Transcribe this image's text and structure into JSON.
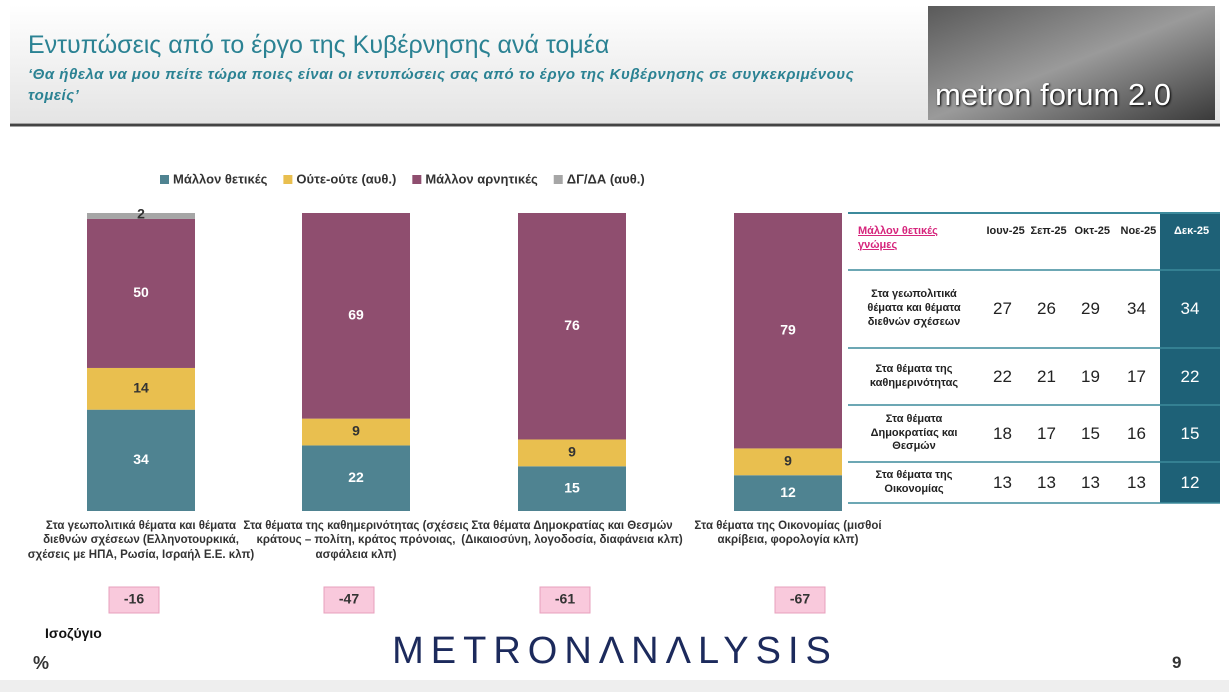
{
  "header": {
    "title": "Εντυπώσεις από το έργο της Κυβέρνησης ανά τομέα",
    "subtitle": "‘Θα ήθελα να μου πείτε τώρα ποιες είναι οι εντυπώσεις σας από το έργο της Κυβέρνησης σε συγκεκριμένους τομείς’",
    "logo": "metron forum 2.0"
  },
  "chart_data": {
    "type": "stacked_bar",
    "categories": [
      "Στα γεωπολιτικά θέματα και θέματα διεθνών σχέσεων (Ελληνοτουρκικά, σχέσεις με ΗΠΑ, Ρωσία, Ισραήλ Ε.Ε. κλπ)",
      "Στα θέματα της καθημερινότητας (σχέσεις κράτους – πολίτη, κράτος πρόνοιας, ασφάλεια κλπ)",
      "Στα θέματα Δημοκρατίας και Θεσμών (Δικαιοσύνη, λογοδοσία, διαφάνεια κλπ)",
      "Στα θέματα της Οικονομίας (μισθοί ακρίβεια, φορολογία κλπ)"
    ],
    "series": [
      {
        "name": "Μάλλον θετικές",
        "color": "#4f8391",
        "values": [
          34,
          22,
          15,
          12
        ]
      },
      {
        "name": "Ούτε-ούτε  (αυθ.)",
        "color": "#e9bf4f",
        "values": [
          14,
          9,
          9,
          9
        ]
      },
      {
        "name": "Μάλλον αρνητικές",
        "color": "#8f4e6f",
        "values": [
          50,
          69,
          76,
          79
        ]
      },
      {
        "name": "ΔΓ/ΔΑ (αυθ.)",
        "color": "#a6a6a6",
        "values": [
          2,
          0,
          0,
          0
        ]
      }
    ],
    "ylim": [
      0,
      100
    ],
    "legend": "top"
  },
  "balance": {
    "label": "Ισοζύγιο",
    "values": [
      -16,
      -47,
      -61,
      -67
    ]
  },
  "table": {
    "columns": [
      "Μάλλον θετικές γνώμες",
      "Ιουν-25",
      "Σεπ-25",
      "Οκτ-25",
      "Νοε-25",
      "Δεκ-25"
    ],
    "rows": [
      [
        "Στα γεωπολιτικά θέματα και θέματα διεθνών σχέσεων",
        27,
        26,
        29,
        34,
        34
      ],
      [
        "Στα θέματα της καθημερινότητας",
        22,
        21,
        19,
        17,
        22
      ],
      [
        "Στα θέματα Δημοκρατίας και Θεσμών",
        18,
        17,
        15,
        16,
        15
      ],
      [
        "Στα θέματα της Οικονομίας",
        13,
        13,
        13,
        13,
        12
      ]
    ]
  },
  "footer": {
    "unit": "%",
    "brand": "METRONΛNΛLYSIS",
    "page": "9"
  }
}
